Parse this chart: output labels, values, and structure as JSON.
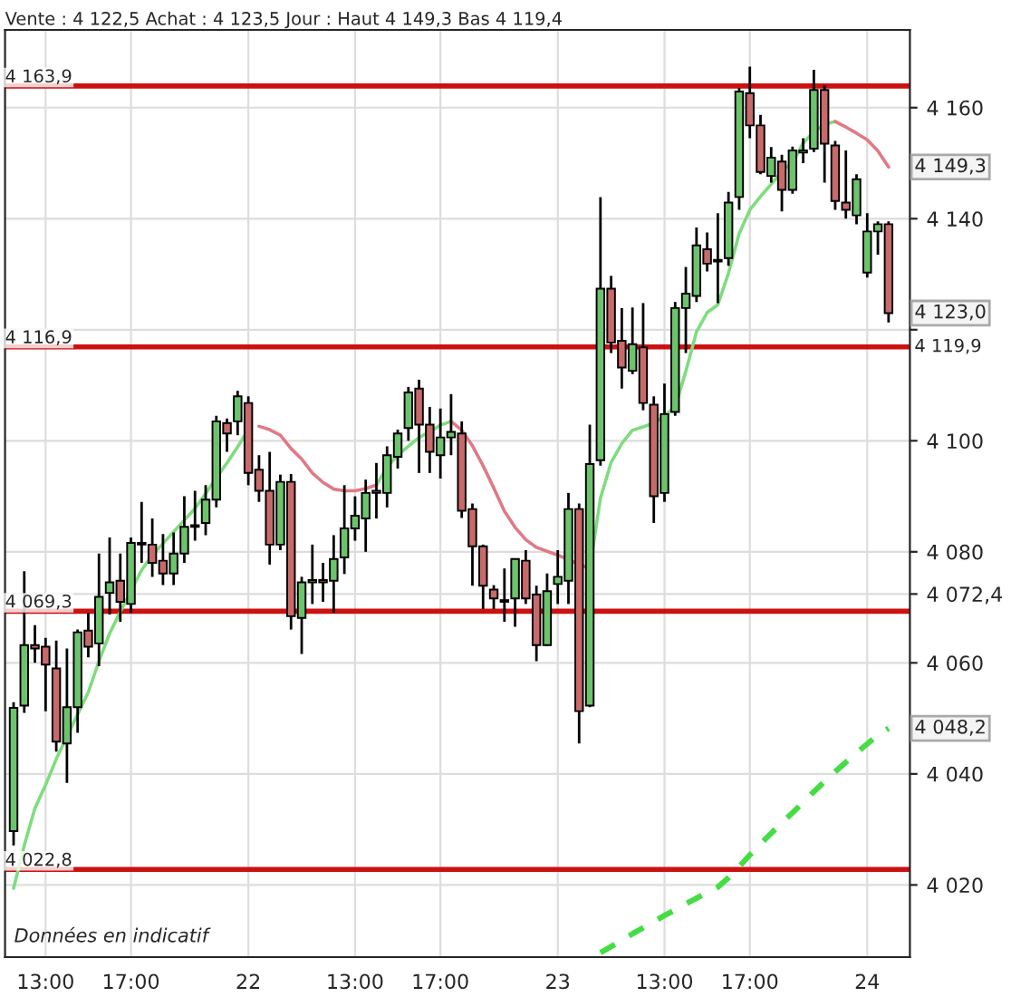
{
  "chart_data": {
    "type": "candlestick",
    "title": "Vente : 4 122,5 Achat : 4 123,5 Jour : Haut 4 149,3 Bas 4 119,4",
    "categories": [
      null,
      null,
      null,
      "13:00",
      null,
      null,
      null,
      null,
      null,
      null,
      null,
      "17:00",
      null,
      null,
      null,
      null,
      null,
      null,
      null,
      null,
      null,
      null,
      "22",
      null,
      null,
      null,
      null,
      null,
      null,
      null,
      null,
      null,
      "13:00",
      null,
      null,
      null,
      null,
      null,
      null,
      null,
      "17:00",
      null,
      null,
      null,
      null,
      null,
      null,
      null,
      null,
      null,
      null,
      "23",
      null,
      null,
      null,
      null,
      null,
      null,
      null,
      null,
      null,
      "13:00",
      null,
      null,
      null,
      null,
      null,
      null,
      null,
      "17:00",
      null,
      null,
      null,
      null,
      null,
      null,
      null,
      null,
      null,
      null,
      "24",
      null,
      null
    ],
    "ohlc": [
      [
        4029.7,
        4052.9,
        4027.1,
        4051.9
      ],
      [
        4052.3,
        4076.5,
        4051.0,
        4063.2
      ],
      [
        4063.2,
        4066.8,
        4060.0,
        4062.6
      ],
      [
        4062.9,
        4064.5,
        4051.3,
        4059.7
      ],
      [
        4059.0,
        4064.0,
        4044.0,
        4045.8
      ],
      [
        4045.5,
        4062.6,
        4038.4,
        4052.0
      ],
      [
        4052.0,
        4066.0,
        4047.4,
        4065.5
      ],
      [
        4065.8,
        4069.0,
        4061.0,
        4062.9
      ],
      [
        4063.5,
        4079.7,
        4059.4,
        4071.9
      ],
      [
        4072.6,
        4082.6,
        4068.7,
        4074.5
      ],
      [
        4074.8,
        4079.7,
        4067.4,
        4071.0
      ],
      [
        4070.6,
        4082.6,
        4069.0,
        4081.6
      ],
      [
        4081.6,
        4089.0,
        4078.0,
        4081.3
      ],
      [
        4081.3,
        4086.0,
        4075.5,
        4078.0
      ],
      [
        4078.4,
        4083.2,
        4074.0,
        4076.1
      ],
      [
        4076.1,
        4083.5,
        4074.0,
        4079.7
      ],
      [
        4079.7,
        4090.0,
        4078.0,
        4084.5
      ],
      [
        4084.5,
        4091.0,
        4082.0,
        4084.8
      ],
      [
        4085.2,
        4092.0,
        4083.0,
        4089.4
      ],
      [
        4089.4,
        4104.5,
        4088.0,
        4103.5
      ],
      [
        4103.2,
        4104.0,
        4098.0,
        4101.3
      ],
      [
        4103.5,
        4109.0,
        4101.0,
        4108.0
      ],
      [
        4106.8,
        4108.0,
        4092.0,
        4094.2
      ],
      [
        4094.8,
        4097.4,
        4089.0,
        4091.0
      ],
      [
        4091.0,
        4098.0,
        4077.7,
        4081.3
      ],
      [
        4081.3,
        4093.9,
        4080.3,
        4092.6
      ],
      [
        4092.6,
        4094.0,
        4066.0,
        4068.4
      ],
      [
        4068.1,
        4075.5,
        4061.6,
        4074.5
      ],
      [
        4074.5,
        4081.3,
        4070.6,
        4074.9
      ],
      [
        4074.9,
        4078.0,
        4071.0,
        4074.5
      ],
      [
        4074.8,
        4083.0,
        4069.0,
        4078.7
      ],
      [
        4079.0,
        4092.0,
        4076.0,
        4084.2
      ],
      [
        4084.2,
        4090.0,
        4082.0,
        4086.5
      ],
      [
        4086.0,
        4093.0,
        4080.0,
        4090.6
      ],
      [
        4090.6,
        4096.0,
        4086.0,
        4091.0
      ],
      [
        4090.6,
        4099.0,
        4088.0,
        4097.4
      ],
      [
        4097.1,
        4102.0,
        4095.0,
        4101.3
      ],
      [
        4102.3,
        4109.7,
        4100.0,
        4108.7
      ],
      [
        4109.4,
        4111.0,
        4094.2,
        4102.9
      ],
      [
        4102.9,
        4106.1,
        4094.2,
        4098.0
      ],
      [
        4097.4,
        4105.8,
        4093.2,
        4100.6
      ],
      [
        4100.6,
        4108.4,
        4097.4,
        4101.6
      ],
      [
        4101.3,
        4103.5,
        4086.1,
        4087.4
      ],
      [
        4087.7,
        4088.7,
        4073.9,
        4081.0
      ],
      [
        4081.0,
        4081.3,
        4069.7,
        4073.9
      ],
      [
        4073.2,
        4074.0,
        4069.7,
        4071.6
      ],
      [
        4071.3,
        4077.0,
        4067.4,
        4071.0
      ],
      [
        4071.6,
        4078.7,
        4066.5,
        4078.7
      ],
      [
        4078.4,
        4080.3,
        4070.6,
        4071.6
      ],
      [
        4072.3,
        4073.9,
        4060.3,
        4063.2
      ],
      [
        4063.2,
        4076.1,
        4063.0,
        4072.9
      ],
      [
        4074.2,
        4080.3,
        4070.6,
        4075.5
      ],
      [
        4074.8,
        4090.6,
        4070.6,
        4087.7
      ],
      [
        4087.7,
        4088.7,
        4045.5,
        4051.3
      ],
      [
        4052.3,
        4102.9,
        4052.0,
        4095.8
      ],
      [
        4096.5,
        4143.9,
        4095.5,
        4127.4
      ],
      [
        4127.4,
        4129.7,
        4115.8,
        4117.7
      ],
      [
        4118.0,
        4123.9,
        4109.4,
        4113.2
      ],
      [
        4112.6,
        4124.0,
        4112.0,
        4117.4
      ],
      [
        4116.8,
        4124.8,
        4105.5,
        4106.8
      ],
      [
        4106.5,
        4108.0,
        4085.2,
        4090.0
      ],
      [
        4090.6,
        4110.3,
        4089.0,
        4104.8
      ],
      [
        4105.2,
        4125.0,
        4104.5,
        4123.9
      ],
      [
        4123.9,
        4131.3,
        4115.8,
        4126.5
      ],
      [
        4126.1,
        4138.4,
        4125.0,
        4135.2
      ],
      [
        4134.5,
        4137.5,
        4130.5,
        4131.9
      ],
      [
        4132.3,
        4141.0,
        4124.8,
        4132.6
      ],
      [
        4132.9,
        4144.8,
        4131.5,
        4142.9
      ],
      [
        4143.9,
        4163.5,
        4141.6,
        4162.9
      ],
      [
        4162.6,
        4167.4,
        4154.5,
        4156.8
      ],
      [
        4156.8,
        4158.7,
        4148.0,
        4148.4
      ],
      [
        4147.7,
        4152.9,
        4146.5,
        4151.0
      ],
      [
        4150.3,
        4151.5,
        4141.3,
        4145.2
      ],
      [
        4145.2,
        4153.0,
        4144.5,
        4152.3
      ],
      [
        4151.9,
        4154.5,
        4150.0,
        4152.3
      ],
      [
        4152.6,
        4166.8,
        4152.0,
        4163.2
      ],
      [
        4163.2,
        4164.0,
        4146.5,
        4153.5
      ],
      [
        4153.2,
        4154.0,
        4141.6,
        4143.2
      ],
      [
        4142.9,
        4152.3,
        4140.0,
        4141.6
      ],
      [
        4140.6,
        4148.0,
        4139.0,
        4147.1
      ],
      [
        4130.3,
        4141.0,
        4129.4,
        4137.7
      ],
      [
        4137.7,
        4139.5,
        4133.5,
        4139.0
      ],
      [
        4139.0,
        4139.5,
        4121.3,
        4123.0
      ]
    ],
    "series": [
      {
        "type": "line",
        "color": "#7fdc7f",
        "values": [
          4019.4,
          4027.1,
          4033.8,
          4038.0,
          4042.7,
          4046.7,
          4050.7,
          4054.7,
          4060.3,
          4065.3,
          4069.2,
          4073.0,
          4076.7,
          4079.4,
          4081.5,
          4083.6,
          4085.7,
          4087.8,
          4090.5,
          4093.3,
          4096.0,
          4098.9,
          4102.0,
          null,
          null,
          null,
          null,
          null,
          null,
          null,
          null,
          null,
          null,
          null,
          4092.0,
          4095.3,
          4097.4,
          4099.0,
          4100.6,
          4101.6,
          4102.8,
          4103.5,
          null,
          null,
          null,
          null,
          null,
          null,
          null,
          null,
          null,
          null,
          null,
          null,
          4077.0,
          4089.7,
          4096.1,
          4099.5,
          4101.9,
          4102.5,
          4103.2,
          4104.5,
          4106.1,
          4112.5,
          4119.6,
          4123.1,
          4124.5,
          4130.2,
          4137.3,
          4141.6,
          4144.0,
          4146.2,
          4148.5,
          4150.1,
          4153.6,
          4155.7,
          4157.0,
          4157.5,
          null,
          null,
          null,
          null,
          null
        ]
      },
      {
        "type": "line",
        "color": "#e07a85",
        "values": [
          null,
          null,
          null,
          null,
          null,
          null,
          null,
          null,
          null,
          null,
          null,
          null,
          null,
          null,
          null,
          null,
          null,
          null,
          null,
          null,
          null,
          null,
          null,
          4102.6,
          4102.0,
          4101.0,
          4098.6,
          4096.7,
          4094.2,
          4092.5,
          4091.3,
          4091.0,
          4091.0,
          4091.4,
          4092.0,
          null,
          null,
          null,
          null,
          null,
          null,
          4103.5,
          4101.9,
          4099.1,
          4095.5,
          4091.5,
          4087.3,
          4084.4,
          4082.2,
          4080.8,
          4080.1,
          4079.4,
          4078.6,
          4077.7,
          4077.0,
          null,
          null,
          null,
          null,
          null,
          null,
          null,
          null,
          null,
          null,
          null,
          null,
          null,
          null,
          null,
          null,
          null,
          null,
          null,
          null,
          null,
          null,
          4157.5,
          4156.5,
          4155.4,
          4154.2,
          4152.2,
          4149.3
        ]
      },
      {
        "type": "line",
        "color": "#44dd44",
        "line_style": "dashed",
        "values": [
          null,
          null,
          null,
          null,
          null,
          null,
          null,
          null,
          null,
          null,
          null,
          null,
          null,
          null,
          null,
          null,
          null,
          null,
          null,
          null,
          null,
          null,
          null,
          null,
          null,
          null,
          null,
          null,
          null,
          null,
          null,
          null,
          null,
          null,
          null,
          null,
          null,
          null,
          null,
          null,
          null,
          null,
          null,
          null,
          null,
          null,
          null,
          null,
          null,
          null,
          null,
          null,
          null,
          null,
          null,
          4007.8,
          4008.9,
          4010.0,
          4011.2,
          4012.3,
          4013.4,
          4014.5,
          4015.5,
          4016.6,
          4017.6,
          4018.6,
          4019.6,
          4021.3,
          4023.3,
          4025.4,
          4027.4,
          4029.3,
          4031.2,
          4033.0,
          4034.9,
          4036.8,
          4038.6,
          4040.4,
          4042.1,
          4043.8,
          4045.4,
          4047.0,
          4048.2
        ]
      }
    ],
    "ylim": [
      4007,
      4174
    ],
    "yticks": [
      {
        "value": 4020,
        "label": "4 020"
      },
      {
        "value": 4040,
        "label": "4 040"
      },
      {
        "value": 4060,
        "label": "4 060"
      },
      {
        "value": 4080,
        "label": "4 080"
      },
      {
        "value": 4100,
        "label": "4 100"
      },
      {
        "value": 4072.4,
        "label": "4 072,4"
      },
      {
        "value": 4120,
        "label": null
      },
      {
        "value": 4140,
        "label": "4 140"
      },
      {
        "value": 4160,
        "label": "4 160"
      }
    ],
    "ref_lines": [
      {
        "axis": "y",
        "value": 4163.9,
        "label": "4 163,9",
        "color": "#cc1111"
      },
      {
        "axis": "y",
        "value": 4116.9,
        "label": "4 116,9",
        "color": "#cc1111"
      },
      {
        "axis": "y",
        "value": 4069.3,
        "label": "4 069,3",
        "color": "#cc1111"
      },
      {
        "axis": "y",
        "value": 4022.8,
        "label": "4 022,8",
        "color": "#cc1111"
      }
    ],
    "annotations": [
      {
        "text": "4 149,3",
        "y": 4149.3
      },
      {
        "text": "4 123,0",
        "y": 4123.0
      },
      "4 119,9",
      {
        "text": "4 048,2",
        "y": 4048.2
      },
      "Données en indicatif"
    ],
    "grid": true,
    "legend": false
  }
}
